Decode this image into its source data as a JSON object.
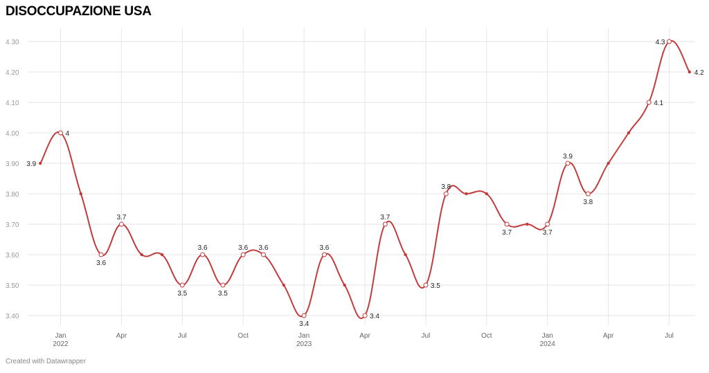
{
  "header": {
    "title": "DISOCCUPAZIONE USA"
  },
  "footer": {
    "credit": "Created with Datawrapper"
  },
  "colors": {
    "line": "#c23b3b",
    "grid": "#e5e5e5",
    "tick_text": "#9a9a9a",
    "label_text": "#222222"
  },
  "chart_data": {
    "type": "line",
    "title": "DISOCCUPAZIONE USA",
    "xlabel": "",
    "ylabel": "",
    "ylim": [
      3.37,
      4.33
    ],
    "y_ticks": [
      "4.30",
      "4.20",
      "4.10",
      "4.00",
      "3.90",
      "3.80",
      "3.70",
      "3.60",
      "3.50",
      "3.40"
    ],
    "x_ticks": [
      {
        "month": "2022-01",
        "label": "Jan",
        "sublabel": "2022"
      },
      {
        "month": "2022-04",
        "label": "Apr",
        "sublabel": ""
      },
      {
        "month": "2022-07",
        "label": "Jul",
        "sublabel": ""
      },
      {
        "month": "2022-10",
        "label": "Oct",
        "sublabel": ""
      },
      {
        "month": "2023-01",
        "label": "Jan",
        "sublabel": "2023"
      },
      {
        "month": "2023-04",
        "label": "Apr",
        "sublabel": ""
      },
      {
        "month": "2023-07",
        "label": "Jul",
        "sublabel": ""
      },
      {
        "month": "2023-10",
        "label": "Oct",
        "sublabel": ""
      },
      {
        "month": "2024-01",
        "label": "Jan",
        "sublabel": "2024"
      },
      {
        "month": "2024-04",
        "label": "Apr",
        "sublabel": ""
      },
      {
        "month": "2024-07",
        "label": "Jul",
        "sublabel": ""
      }
    ],
    "grid": true,
    "series": [
      {
        "values": [
          {
            "month": "2021-12",
            "value": 3.9,
            "label": "3.9",
            "marker": false,
            "label_pos": "left"
          },
          {
            "month": "2022-01",
            "value": 4.0,
            "label": "4",
            "marker": true,
            "label_pos": "right"
          },
          {
            "month": "2022-02",
            "value": 3.8
          },
          {
            "month": "2022-03",
            "value": 3.6,
            "label": "3.6",
            "marker": true,
            "label_pos": "below"
          },
          {
            "month": "2022-04",
            "value": 3.7,
            "label": "3.7",
            "marker": true,
            "label_pos": "above"
          },
          {
            "month": "2022-05",
            "value": 3.6
          },
          {
            "month": "2022-06",
            "value": 3.6
          },
          {
            "month": "2022-07",
            "value": 3.5,
            "label": "3.5",
            "marker": true,
            "label_pos": "below"
          },
          {
            "month": "2022-08",
            "value": 3.6,
            "label": "3.6",
            "marker": true,
            "label_pos": "above"
          },
          {
            "month": "2022-09",
            "value": 3.5,
            "label": "3.5",
            "marker": true,
            "label_pos": "below"
          },
          {
            "month": "2022-10",
            "value": 3.6,
            "label": "3.6",
            "marker": true,
            "label_pos": "above"
          },
          {
            "month": "2022-11",
            "value": 3.6,
            "label": "3.6",
            "marker": true,
            "label_pos": "above"
          },
          {
            "month": "2022-12",
            "value": 3.5
          },
          {
            "month": "2023-01",
            "value": 3.4,
            "label": "3.4",
            "marker": true,
            "label_pos": "below"
          },
          {
            "month": "2023-02",
            "value": 3.6,
            "label": "3.6",
            "marker": true,
            "label_pos": "above"
          },
          {
            "month": "2023-03",
            "value": 3.5
          },
          {
            "month": "2023-04",
            "value": 3.4,
            "label": "3.4",
            "marker": true,
            "label_pos": "right"
          },
          {
            "month": "2023-05",
            "value": 3.7,
            "label": "3.7",
            "marker": true,
            "label_pos": "above"
          },
          {
            "month": "2023-06",
            "value": 3.6
          },
          {
            "month": "2023-07",
            "value": 3.5,
            "label": "3.5",
            "marker": true,
            "label_pos": "right"
          },
          {
            "month": "2023-08",
            "value": 3.8,
            "label": "3.8",
            "marker": true,
            "label_pos": "above"
          },
          {
            "month": "2023-09",
            "value": 3.8
          },
          {
            "month": "2023-10",
            "value": 3.8
          },
          {
            "month": "2023-11",
            "value": 3.7,
            "label": "3.7",
            "marker": true,
            "label_pos": "below"
          },
          {
            "month": "2023-12",
            "value": 3.7
          },
          {
            "month": "2024-01",
            "value": 3.7,
            "label": "3.7",
            "marker": true,
            "label_pos": "below"
          },
          {
            "month": "2024-02",
            "value": 3.9,
            "label": "3.9",
            "marker": true,
            "label_pos": "above"
          },
          {
            "month": "2024-03",
            "value": 3.8,
            "label": "3.8",
            "marker": true,
            "label_pos": "below"
          },
          {
            "month": "2024-04",
            "value": 3.9
          },
          {
            "month": "2024-05",
            "value": 4.0
          },
          {
            "month": "2024-06",
            "value": 4.1,
            "label": "4.1",
            "marker": true,
            "label_pos": "right"
          },
          {
            "month": "2024-07",
            "value": 4.3,
            "label": "4.3",
            "marker": true,
            "label_pos": "left"
          },
          {
            "month": "2024-08",
            "value": 4.2,
            "label": "4.2",
            "marker": false,
            "label_pos": "right"
          }
        ]
      }
    ]
  }
}
